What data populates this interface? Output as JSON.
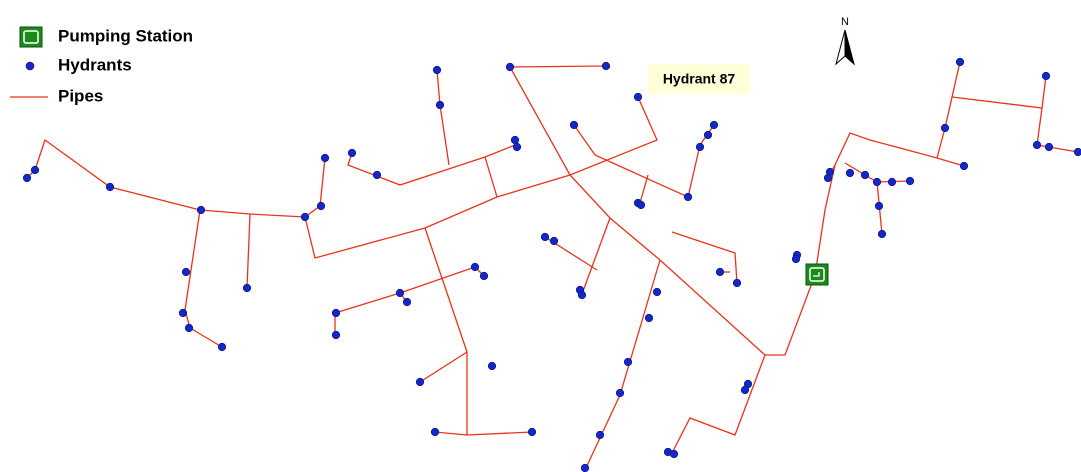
{
  "legend": [
    {
      "label": "Pumping Station"
    },
    {
      "label": "Hydrants"
    },
    {
      "label": "Pipes"
    }
  ],
  "callout": {
    "label": "Hydrant 87"
  },
  "north_arrow": {
    "label": "N"
  }
}
